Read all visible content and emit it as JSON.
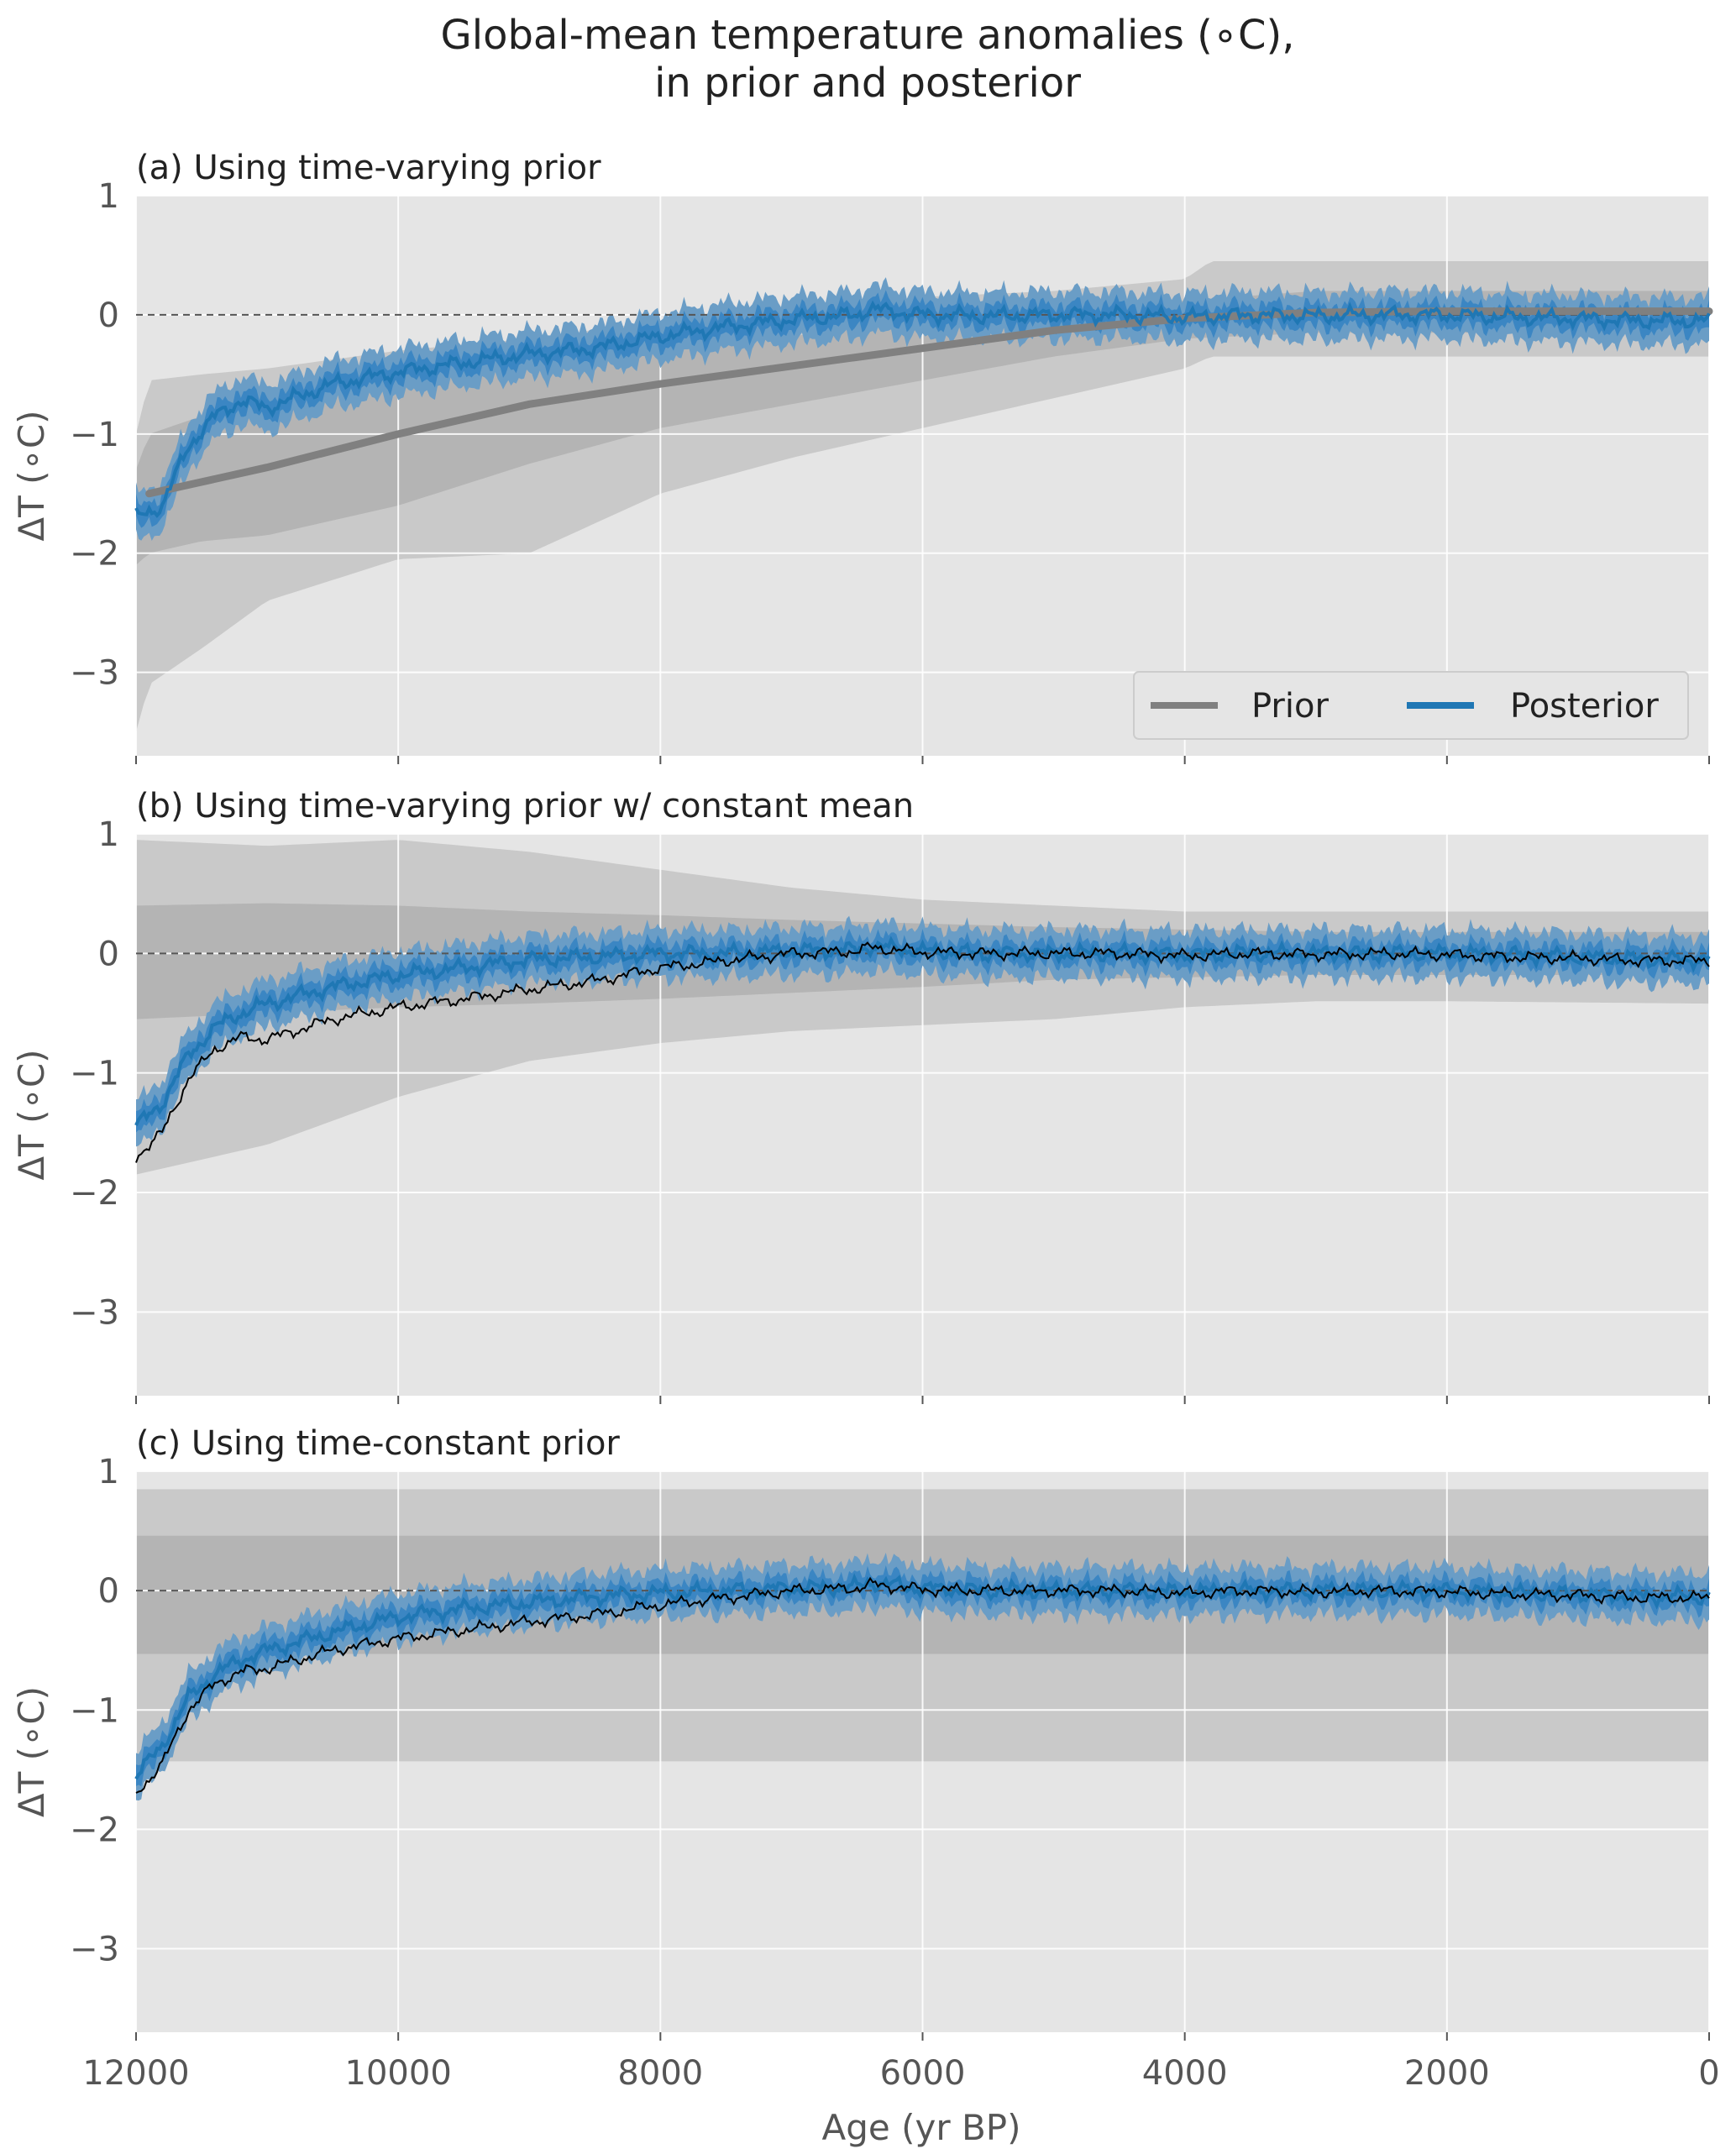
{
  "figure": {
    "title_line1": "Global-mean temperature anomalies (∘C),",
    "title_line2": "in prior and posterior",
    "xlabel": "Age (yr BP)",
    "ylabel": "ΔT (∘C)"
  },
  "colors": {
    "axes_bg": "#e5e5e5",
    "grid": "#ffffff",
    "prior_band_outer": "#c9c9c9",
    "prior_band_inner": "#b4b4b4",
    "prior_line": "#808080",
    "posterior_line": "#1f77b4",
    "posterior_band_outer": "#6a9dc6",
    "posterior_band_inner": "#3b86c3",
    "posterior_mean_black": "#000000",
    "zero_line": "#555555"
  },
  "legend": {
    "prior": "Prior",
    "posterior": "Posterior",
    "placement": "lower-right"
  },
  "chart_data": [
    {
      "type": "line",
      "title": "(a) Using time-varying prior",
      "xlabel": "",
      "ylabel": "ΔT (∘C)",
      "xlim": [
        12000,
        0
      ],
      "ylim": [
        -3.7,
        1.0
      ],
      "xticks": [
        12000,
        10000,
        8000,
        6000,
        4000,
        2000,
        0
      ],
      "yticks": [
        1,
        0,
        -1,
        -2,
        -3
      ],
      "ytick_labels": [
        "1",
        "0",
        "−1",
        "−2",
        "−3"
      ],
      "grid": true,
      "prior_mean": {
        "x": [
          11900,
          11000,
          10000,
          9000,
          8000,
          7000,
          6000,
          5000,
          4000,
          3000,
          2000,
          1000,
          0
        ],
        "y": [
          -1.5,
          -1.28,
          -1.0,
          -0.75,
          -0.58,
          -0.43,
          -0.28,
          -0.13,
          -0.03,
          0.02,
          0.03,
          0.03,
          0.03
        ]
      },
      "prior_band_outer": {
        "x": [
          12000,
          11900,
          11500,
          11000,
          10000,
          9000,
          8000,
          7000,
          6000,
          5000,
          4000,
          3800,
          2000,
          0
        ],
        "lower": [
          -3.5,
          -3.1,
          -2.8,
          -2.4,
          -2.05,
          -2.0,
          -1.5,
          -1.2,
          -0.95,
          -0.7,
          -0.45,
          -0.35,
          -0.35,
          -0.35
        ],
        "upper": [
          -1.0,
          -0.55,
          -0.5,
          -0.45,
          -0.3,
          -0.2,
          -0.05,
          0.05,
          0.15,
          0.2,
          0.3,
          0.45,
          0.45,
          0.45
        ]
      },
      "prior_band_inner": {
        "x": [
          12000,
          11900,
          11500,
          11000,
          10000,
          9000,
          8000,
          7000,
          6000,
          5000,
          4000,
          3000,
          2000,
          0
        ],
        "lower": [
          -2.1,
          -2.0,
          -1.9,
          -1.85,
          -1.6,
          -1.25,
          -0.95,
          -0.75,
          -0.55,
          -0.35,
          -0.2,
          -0.15,
          -0.15,
          -0.15
        ],
        "upper": [
          -1.3,
          -1.0,
          -0.85,
          -0.7,
          -0.5,
          -0.38,
          -0.28,
          -0.18,
          -0.05,
          0.05,
          0.12,
          0.2,
          0.2,
          0.2
        ]
      },
      "posterior_mean": {
        "x": [
          12000,
          11800,
          11600,
          11400,
          11200,
          11000,
          10500,
          10000,
          9500,
          9000,
          8500,
          8000,
          7500,
          7000,
          6500,
          6400,
          6000,
          5500,
          5000,
          4500,
          4000,
          3500,
          3000,
          2500,
          2000,
          1500,
          1000,
          500,
          0
        ],
        "y": [
          -1.7,
          -1.6,
          -1.1,
          -0.85,
          -0.72,
          -0.78,
          -0.58,
          -0.48,
          -0.4,
          -0.33,
          -0.28,
          -0.18,
          -0.1,
          -0.04,
          0.0,
          0.05,
          0.0,
          -0.01,
          0.0,
          0.0,
          -0.02,
          0.0,
          -0.01,
          0.0,
          0.0,
          -0.02,
          -0.03,
          -0.05,
          -0.05
        ]
      },
      "posterior_band_halfwidth": {
        "inner": 0.09,
        "outer": 0.2
      },
      "zero_line": 0,
      "show_posterior_black_line": false
    },
    {
      "type": "line",
      "title": "(b) Using time-varying prior w/ constant mean",
      "xlabel": "",
      "ylabel": "ΔT (∘C)",
      "xlim": [
        12000,
        0
      ],
      "ylim": [
        -3.7,
        1.0
      ],
      "xticks": [
        12000,
        10000,
        8000,
        6000,
        4000,
        2000,
        0
      ],
      "yticks": [
        1,
        0,
        -1,
        -2,
        -3
      ],
      "ytick_labels": [
        "1",
        "0",
        "−1",
        "−2",
        "−3"
      ],
      "grid": true,
      "prior_mean": {
        "x": [
          12000,
          0
        ],
        "y": [
          0,
          0
        ]
      },
      "prior_band_outer": {
        "x": [
          12000,
          11000,
          10000,
          9000,
          8000,
          7000,
          6000,
          5000,
          4000,
          3000,
          2000,
          0
        ],
        "lower": [
          -1.85,
          -1.6,
          -1.2,
          -0.9,
          -0.75,
          -0.65,
          -0.6,
          -0.55,
          -0.45,
          -0.4,
          -0.4,
          -0.42
        ],
        "upper": [
          0.95,
          0.9,
          0.95,
          0.85,
          0.7,
          0.55,
          0.45,
          0.4,
          0.35,
          0.35,
          0.35,
          0.35
        ]
      },
      "prior_band_inner": {
        "x": [
          12000,
          11000,
          10000,
          9000,
          8000,
          7000,
          6000,
          5000,
          4000,
          3000,
          2000,
          0
        ],
        "lower": [
          -0.55,
          -0.5,
          -0.45,
          -0.42,
          -0.38,
          -0.33,
          -0.28,
          -0.22,
          -0.2,
          -0.18,
          -0.18,
          -0.18
        ],
        "upper": [
          0.4,
          0.42,
          0.4,
          0.35,
          0.32,
          0.28,
          0.25,
          0.22,
          0.2,
          0.18,
          0.18,
          0.18
        ]
      },
      "posterior_mean": {
        "x": [
          12000,
          11800,
          11600,
          11400,
          11200,
          11000,
          10500,
          10000,
          9500,
          9000,
          8500,
          8000,
          7500,
          7000,
          6500,
          6400,
          6000,
          5500,
          5000,
          4500,
          4000,
          3500,
          3000,
          2500,
          2000,
          1500,
          1000,
          500,
          0
        ],
        "y": [
          -1.45,
          -1.25,
          -0.85,
          -0.62,
          -0.5,
          -0.42,
          -0.28,
          -0.18,
          -0.12,
          -0.05,
          -0.03,
          0.0,
          0.0,
          0.02,
          0.03,
          0.06,
          0.02,
          0.0,
          0.0,
          0.0,
          -0.01,
          0.0,
          0.0,
          0.0,
          0.0,
          -0.01,
          -0.03,
          -0.05,
          -0.05
        ]
      },
      "posterior_black": {
        "x": [
          12000,
          11800,
          11600,
          11400,
          11200,
          11000,
          10500,
          10000,
          9500,
          9000,
          8500,
          8000,
          7500,
          7000,
          6500,
          6400,
          6000,
          5500,
          5000,
          4500,
          4000,
          3500,
          3000,
          2500,
          2000,
          1500,
          1000,
          500,
          0
        ],
        "y": [
          -1.7,
          -1.5,
          -1.05,
          -0.8,
          -0.7,
          -0.72,
          -0.55,
          -0.45,
          -0.38,
          -0.3,
          -0.23,
          -0.12,
          -0.06,
          0.0,
          0.02,
          0.05,
          0.01,
          0.0,
          0.0,
          0.0,
          -0.02,
          0.0,
          -0.01,
          0.0,
          -0.01,
          -0.03,
          -0.04,
          -0.06,
          -0.06
        ]
      },
      "posterior_band_halfwidth": {
        "inner": 0.09,
        "outer": 0.2
      },
      "zero_line": 0,
      "show_posterior_black_line": true
    },
    {
      "type": "line",
      "title": "(c) Using time-constant prior",
      "xlabel": "Age (yr BP)",
      "ylabel": "ΔT (∘C)",
      "xlim": [
        12000,
        0
      ],
      "ylim": [
        -3.7,
        1.0
      ],
      "xticks": [
        12000,
        10000,
        8000,
        6000,
        4000,
        2000,
        0
      ],
      "xtick_labels": [
        "12000",
        "10000",
        "8000",
        "6000",
        "4000",
        "2000",
        "0"
      ],
      "yticks": [
        1,
        0,
        -1,
        -2,
        -3
      ],
      "ytick_labels": [
        "1",
        "0",
        "−1",
        "−2",
        "−3"
      ],
      "grid": true,
      "prior_mean": {
        "x": [
          12000,
          0
        ],
        "y": [
          0,
          0
        ]
      },
      "prior_band_outer": {
        "x": [
          12000,
          0
        ],
        "lower": [
          -1.43,
          -1.43
        ],
        "upper": [
          0.85,
          0.85
        ]
      },
      "prior_band_inner": {
        "x": [
          12000,
          0
        ],
        "lower": [
          -0.53,
          -0.53
        ],
        "upper": [
          0.46,
          0.46
        ]
      },
      "posterior_mean": {
        "x": [
          12000,
          11800,
          11600,
          11400,
          11200,
          11000,
          10500,
          10000,
          9500,
          9000,
          8500,
          8000,
          7500,
          7000,
          6500,
          6400,
          6000,
          5500,
          5000,
          4500,
          4000,
          3500,
          3000,
          2500,
          2000,
          1500,
          1000,
          500,
          0
        ],
        "y": [
          -1.55,
          -1.3,
          -0.9,
          -0.7,
          -0.58,
          -0.5,
          -0.35,
          -0.22,
          -0.15,
          -0.1,
          -0.05,
          -0.02,
          0.0,
          0.02,
          0.03,
          0.07,
          0.02,
          0.0,
          0.0,
          0.0,
          -0.01,
          0.0,
          0.0,
          0.0,
          0.0,
          -0.02,
          -0.03,
          -0.05,
          -0.05
        ]
      },
      "posterior_black": {
        "x": [
          12000,
          11800,
          11600,
          11400,
          11200,
          11000,
          10500,
          10000,
          9500,
          9000,
          8500,
          8000,
          7500,
          7000,
          6500,
          6400,
          6000,
          5500,
          5000,
          4500,
          4000,
          3500,
          3000,
          2500,
          2000,
          1500,
          1000,
          500,
          0
        ],
        "y": [
          -1.7,
          -1.45,
          -1.0,
          -0.78,
          -0.68,
          -0.65,
          -0.5,
          -0.4,
          -0.33,
          -0.26,
          -0.2,
          -0.12,
          -0.06,
          0.0,
          0.02,
          0.05,
          0.01,
          0.0,
          0.0,
          0.0,
          -0.02,
          0.0,
          -0.01,
          0.0,
          -0.01,
          -0.03,
          -0.04,
          -0.06,
          -0.06
        ]
      },
      "posterior_band_halfwidth": {
        "inner": 0.09,
        "outer": 0.2
      },
      "zero_line": 0,
      "show_posterior_black_line": true
    }
  ]
}
